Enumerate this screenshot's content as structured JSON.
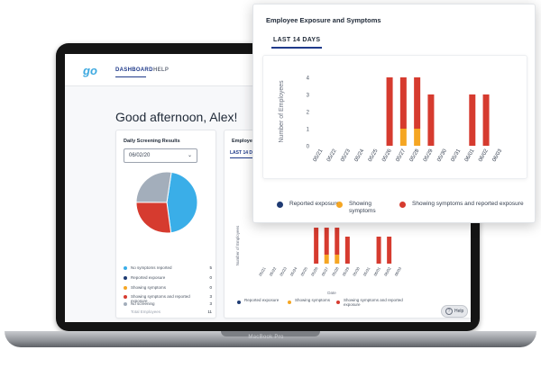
{
  "colors": {
    "reported": "#1f3b73",
    "showing": "#f5a623",
    "both": "#d63b2f",
    "no_symptoms": "#3aaee8",
    "no_screening": "#a3aebb",
    "accent": "#1f3a8a"
  },
  "device": {
    "label": "MacBook Pro"
  },
  "header": {
    "logo": "go",
    "nav": [
      {
        "label": "DASHBOARD",
        "active": true
      },
      {
        "label": "HELP",
        "active": false
      }
    ]
  },
  "greeting": "Good afternoon, Alex!",
  "screening_card": {
    "title": "Daily Screening Results",
    "date_value": "06/02/20",
    "legend": [
      {
        "label": "No symptoms reported",
        "count": "5",
        "color": "#3aaee8"
      },
      {
        "label": "Reported exposure",
        "count": "0",
        "color": "#1f3b73"
      },
      {
        "label": "Showing symptoms",
        "count": "0",
        "color": "#f5a623"
      },
      {
        "label": "Showing symptoms and reported exposure",
        "count": "3",
        "color": "#d63b2f"
      },
      {
        "label": "No screening",
        "count": "3",
        "color": "#a3aebb"
      }
    ],
    "total_label": "Total Employees",
    "total_value": "11"
  },
  "exposure_card": {
    "title": "Employee Exposure and Symptoms",
    "tab": "LAST 14 DAYS",
    "legend": [
      {
        "label": "Reported exposure",
        "color": "#1f3b73"
      },
      {
        "label": "Showing symptoms",
        "color": "#f5a623"
      },
      {
        "label": "Showing symptoms and reported exposure",
        "color": "#d63b2f"
      }
    ]
  },
  "help_button": {
    "label": "Help",
    "icon": "question-icon"
  },
  "popup": {
    "title": "Employee Exposure and Symptoms",
    "tab": "LAST 14 DAYS",
    "legend": [
      {
        "label": "Reported exposure",
        "color": "#1f3b73"
      },
      {
        "label": "Showing symptoms",
        "color": "#f5a623"
      },
      {
        "label": "Showing symptoms and reported exposure",
        "color": "#d63b2f"
      }
    ]
  },
  "chart_data": [
    {
      "type": "pie",
      "title": "",
      "slices": [
        {
          "label": "No symptoms reported",
          "value": 5,
          "color": "#3aaee8"
        },
        {
          "label": "Reported exposure",
          "value": 0,
          "color": "#1f3b73"
        },
        {
          "label": "Showing symptoms",
          "value": 0,
          "color": "#f5a623"
        },
        {
          "label": "Showing symptoms and reported exposure",
          "value": 3,
          "color": "#d63b2f"
        },
        {
          "label": "No screening",
          "value": 3,
          "color": "#a3aebb"
        }
      ]
    },
    {
      "type": "bar",
      "stacked": true,
      "title": "",
      "xlabel": "Date",
      "ylabel": "Number of Employees",
      "ylim": [
        0,
        4
      ],
      "yticks": [
        0,
        1,
        2,
        3,
        4
      ],
      "grid": false,
      "legend": "bottom",
      "categories": [
        "05/21",
        "05/22",
        "05/23",
        "05/24",
        "05/25",
        "05/26",
        "05/27",
        "05/28",
        "05/29",
        "05/30",
        "05/31",
        "06/01",
        "06/02",
        "06/03"
      ],
      "series": [
        {
          "name": "Reported exposure",
          "color": "#1f3b73",
          "values": [
            0,
            0,
            0,
            0,
            0,
            0,
            0,
            0,
            0,
            0,
            0,
            0,
            0,
            0
          ]
        },
        {
          "name": "Showing symptoms",
          "color": "#f5a623",
          "values": [
            0,
            0,
            0,
            0,
            0,
            0,
            1,
            1,
            0,
            0,
            0,
            0,
            0,
            0
          ]
        },
        {
          "name": "Showing symptoms and reported exposure",
          "color": "#d63b2f",
          "values": [
            0,
            0,
            0,
            0,
            0,
            4,
            3,
            3,
            3,
            0,
            0,
            3,
            3,
            0
          ]
        }
      ]
    }
  ]
}
